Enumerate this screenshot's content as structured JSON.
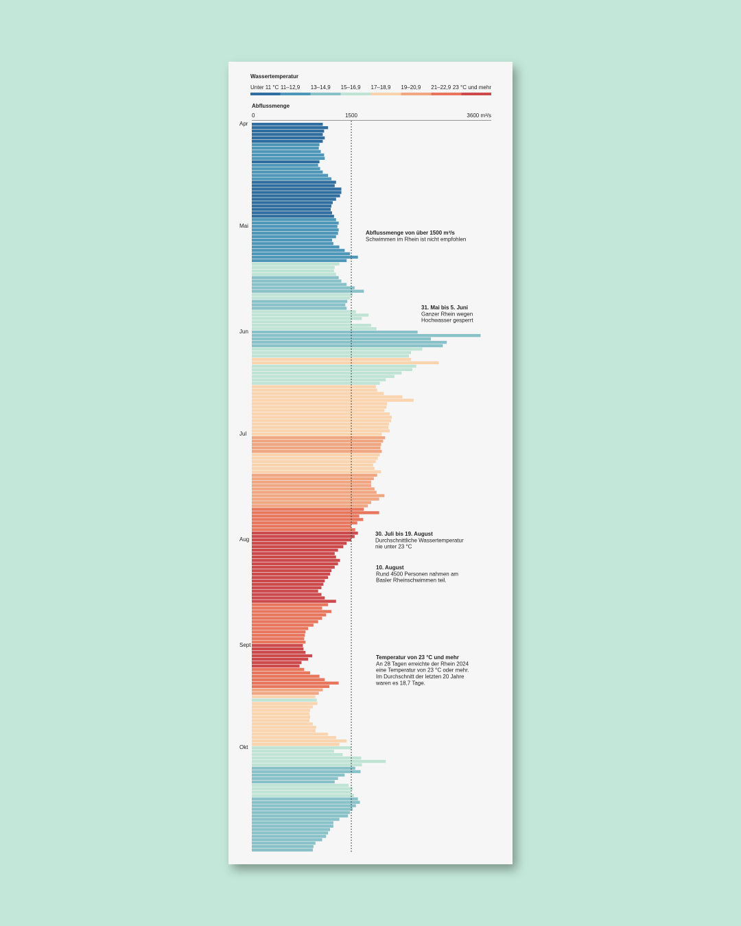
{
  "chart_data": {
    "type": "bar",
    "orientation": "horizontal",
    "legend_title": "Wassertemperatur",
    "legend": [
      {
        "label": "Unter 11 °C",
        "color": "#2f6e9e"
      },
      {
        "label": "11–12,9",
        "color": "#4e97b8"
      },
      {
        "label": "13–14,9",
        "color": "#88c1c7"
      },
      {
        "label": "15–16,9",
        "color": "#bfe4d6"
      },
      {
        "label": "17–18,9",
        "color": "#f9d4ae"
      },
      {
        "label": "19–20,9",
        "color": "#f1a682"
      },
      {
        "label": "21–22,9",
        "color": "#e7765d"
      },
      {
        "label": "23 °C und mehr",
        "color": "#cc4a4c"
      }
    ],
    "x_title": "Abflussmenge",
    "xlim": [
      0,
      3600
    ],
    "xticks": [
      0,
      1500,
      {
        "value": 3600,
        "label": "3600 m³/s"
      }
    ],
    "reference_line": 1500,
    "categories": [
      "Apr",
      null,
      null,
      null,
      null,
      null,
      null,
      null,
      null,
      null,
      null,
      null,
      null,
      null,
      null,
      null,
      null,
      null,
      null,
      null,
      null,
      null,
      null,
      null,
      null,
      null,
      null,
      null,
      null,
      null,
      "Mai",
      null,
      null,
      null,
      null,
      null,
      null,
      null,
      null,
      null,
      null,
      null,
      null,
      null,
      null,
      null,
      null,
      null,
      null,
      null,
      null,
      null,
      null,
      null,
      null,
      null,
      null,
      null,
      null,
      null,
      null,
      "Jun",
      null,
      null,
      null,
      null,
      null,
      null,
      null,
      null,
      null,
      null,
      null,
      null,
      null,
      null,
      null,
      null,
      null,
      null,
      null,
      null,
      null,
      null,
      null,
      null,
      null,
      null,
      null,
      null,
      null,
      "Jul",
      null,
      null,
      null,
      null,
      null,
      null,
      null,
      null,
      null,
      null,
      null,
      null,
      null,
      null,
      null,
      null,
      null,
      null,
      null,
      null,
      null,
      null,
      null,
      null,
      null,
      null,
      null,
      null,
      null,
      null,
      "Aug",
      null,
      null,
      null,
      null,
      null,
      null,
      null,
      null,
      null,
      null,
      null,
      null,
      null,
      null,
      null,
      null,
      null,
      null,
      null,
      null,
      null,
      null,
      null,
      null,
      null,
      null,
      null,
      null,
      null,
      null,
      "Sept",
      null,
      null,
      null,
      null,
      null,
      null,
      null,
      null,
      null,
      null,
      null,
      null,
      null,
      null,
      null,
      null,
      null,
      null,
      null,
      null,
      null,
      null,
      null,
      null,
      null,
      null,
      null,
      null,
      null,
      "Okt",
      null,
      null,
      null,
      null,
      null,
      null,
      null,
      null,
      null,
      null,
      null,
      null,
      null,
      null,
      null,
      null,
      null,
      null,
      null,
      null,
      null,
      null,
      null,
      null,
      null,
      null,
      null,
      null,
      null,
      null
    ],
    "values": [
      1070,
      1150,
      1090,
      1070,
      1100,
      1070,
      1020,
      1010,
      1040,
      1090,
      1100,
      1020,
      1000,
      1030,
      1070,
      1150,
      1200,
      1270,
      1250,
      1350,
      1350,
      1330,
      1270,
      1220,
      1200,
      1190,
      1210,
      1240,
      1270,
      1310,
      1290,
      1310,
      1300,
      1270,
      1210,
      1230,
      1320,
      1400,
      1480,
      1600,
      1430,
      1320,
      1250,
      1240,
      1270,
      1310,
      1350,
      1430,
      1550,
      1690,
      1520,
      1480,
      1440,
      1410,
      1430,
      1570,
      1760,
      1660,
      1500,
      1800,
      1880,
      2500,
      3450,
      2700,
      2940,
      2880,
      2570,
      2400,
      2370,
      2400,
      2820,
      2480,
      2420,
      2260,
      2150,
      2020,
      1930,
      1870,
      1890,
      1990,
      2270,
      2440,
      2040,
      2030,
      2000,
      2080,
      2110,
      2100,
      2070,
      2060,
      2080,
      1960,
      2010,
      1980,
      1950,
      1940,
      1960,
      1930,
      1900,
      1870,
      1830,
      1850,
      1950,
      1890,
      1840,
      1800,
      1800,
      1850,
      1880,
      2000,
      1920,
      1800,
      1750,
      1690,
      1920,
      1620,
      1680,
      1590,
      1500,
      1560,
      1600,
      1550,
      1500,
      1430,
      1380,
      1300,
      1250,
      1270,
      1330,
      1300,
      1250,
      1200,
      1180,
      1150,
      1100,
      1080,
      1050,
      1000,
      1050,
      1100,
      1270,
      1150,
      1060,
      1200,
      1120,
      1060,
      1000,
      930,
      850,
      810,
      800,
      790,
      810,
      770,
      780,
      810,
      910,
      850,
      750,
      720,
      790,
      880,
      1020,
      1100,
      1310,
      1170,
      1070,
      1010,
      960,
      980,
      990,
      920,
      880,
      870,
      880,
      870,
      920,
      970,
      960,
      1150,
      1270,
      1430,
      1320,
      1500,
      1240,
      1370,
      1650,
      2020,
      1660,
      1560,
      1640,
      1400,
      1300,
      1250,
      1460,
      1520,
      1490,
      1540,
      1600,
      1630,
      1570,
      1520,
      1480,
      1450,
      1320,
      1230,
      1230,
      1180,
      1150,
      1120,
      1060,
      960,
      930,
      920
    ],
    "color_classes": [
      0,
      0,
      0,
      0,
      0,
      0,
      1,
      1,
      1,
      1,
      1,
      0,
      1,
      1,
      1,
      1,
      1,
      0,
      0,
      0,
      0,
      0,
      0,
      0,
      0,
      0,
      0,
      0,
      1,
      1,
      1,
      1,
      1,
      1,
      1,
      1,
      1,
      1,
      1,
      1,
      1,
      3,
      3,
      3,
      3,
      2,
      2,
      2,
      2,
      2,
      3,
      3,
      2,
      2,
      2,
      3,
      3,
      3,
      3,
      3,
      3,
      2,
      2,
      2,
      2,
      2,
      3,
      3,
      3,
      4,
      4,
      3,
      3,
      3,
      3,
      3,
      3,
      4,
      4,
      4,
      4,
      4,
      4,
      4,
      4,
      4,
      4,
      4,
      4,
      4,
      4,
      4,
      5,
      5,
      5,
      5,
      5,
      4,
      4,
      4,
      4,
      4,
      4,
      5,
      5,
      5,
      5,
      5,
      5,
      5,
      5,
      5,
      5,
      6,
      6,
      6,
      6,
      6,
      6,
      6,
      7,
      7,
      7,
      7,
      7,
      7,
      7,
      7,
      7,
      7,
      7,
      7,
      7,
      7,
      7,
      7,
      7,
      7,
      7,
      7,
      7,
      6,
      6,
      6,
      6,
      6,
      6,
      6,
      6,
      6,
      6,
      6,
      6,
      7,
      7,
      7,
      7,
      7,
      7,
      7,
      6,
      6,
      6,
      6,
      6,
      6,
      5,
      5,
      4,
      3,
      4,
      4,
      4,
      4,
      4,
      4,
      4,
      4,
      4,
      4,
      4,
      4,
      4,
      3,
      3,
      3,
      3,
      3,
      3,
      2,
      2,
      2,
      2,
      2,
      3,
      3,
      3,
      3,
      2,
      2,
      2,
      2,
      2,
      2,
      2,
      2,
      2,
      2,
      2,
      2,
      2,
      2,
      2,
      2
    ],
    "annotations": [
      {
        "title": "Abflussmenge von über 1500 m³/s",
        "lines": [
          "Schwimmen im Rhein ist nicht empfohlen"
        ]
      },
      {
        "title": "31. Mai bis 5. Juni",
        "lines": [
          "Ganzer Rhein wegen",
          "Hochwasser gesperrt"
        ]
      },
      {
        "title": "30. Juli bis 19. August",
        "lines": [
          "Durchschnittliche Wassertemperatur",
          "nie unter 23 °C"
        ]
      },
      {
        "title": "10. August",
        "lines": [
          "Rund 4500 Personen nahmen am",
          "Basler Rheinschwimmen teil."
        ]
      },
      {
        "title": "Temperatur von 23 °C und mehr",
        "lines": [
          "An 28 Tagen erreichte der Rhein 2024",
          "eine Temperatur von 23 °C oder mehr.",
          "Im Durchschnitt der letzten 20 Jahre",
          "waren es 18,7 Tage."
        ]
      }
    ]
  }
}
